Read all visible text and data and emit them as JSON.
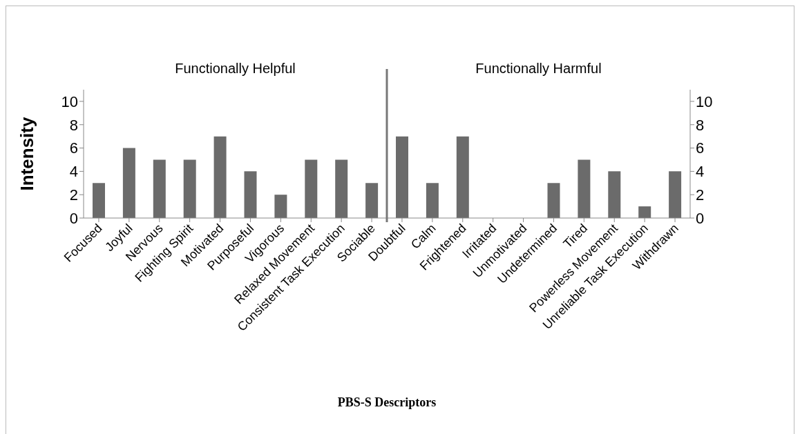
{
  "chart_data": {
    "type": "bar",
    "xlabel": "PBS-S Descriptors",
    "ylabel": "Intensity",
    "annotations": [
      "Functionally Helpful",
      "Functionally Harmful"
    ],
    "categories": [
      "Focused",
      "Joyful",
      "Nervous",
      "Fighting Spirit",
      "Motivated",
      "Purposeful",
      "Vigorous",
      "Relaxed Movement",
      "Consistent Task Execution",
      "Sociable",
      "Doubtful",
      "Calm",
      "Frightened",
      "Irritated",
      "Unmotivated",
      "Undetermined",
      "Tired",
      "Powerless Movement",
      "Unreliable Task Execution",
      "Withdrawn"
    ],
    "series": [
      {
        "color": "#6b6b6b",
        "values": [
          3,
          6,
          5,
          5,
          7,
          4,
          2,
          5,
          5,
          3,
          7,
          3,
          7,
          0,
          0,
          3,
          5,
          4,
          1,
          4
        ]
      }
    ],
    "ylim": [
      0,
      11
    ],
    "yticks": [
      0,
      2,
      4,
      6,
      8,
      10
    ],
    "y2lim": [
      0,
      11
    ],
    "y2ticks": [
      0,
      2,
      4,
      6,
      8,
      10
    ]
  }
}
